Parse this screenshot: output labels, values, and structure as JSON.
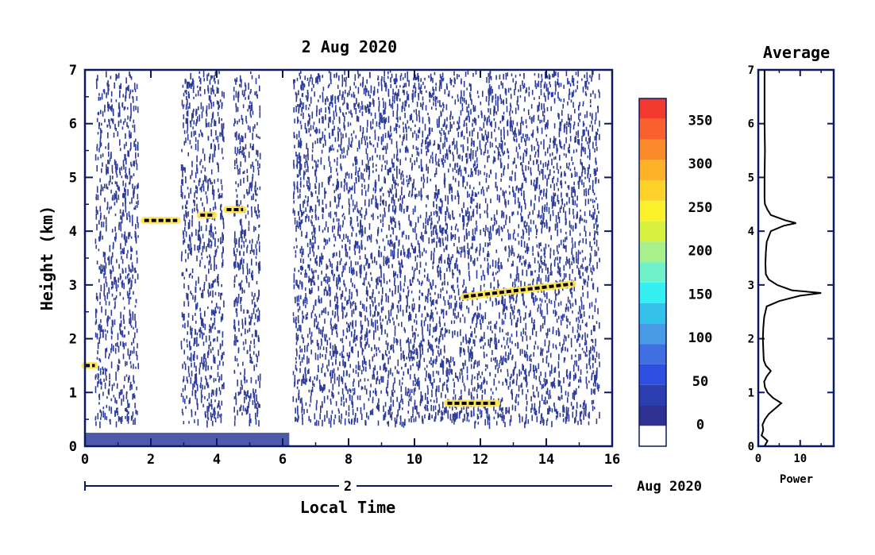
{
  "colors": {
    "frame": "#0b1a5e",
    "noise": "#2f3d9a",
    "line": "#000000",
    "colorbar": [
      "#ffffff",
      "#2e3192",
      "#2c3fb0",
      "#2e4fe0",
      "#3f6fe0",
      "#4a9be6",
      "#34c2ea",
      "#35f0f0",
      "#6ff2c8",
      "#a8f08c",
      "#d8f040",
      "#fcf22c",
      "#fdd22a",
      "#fdb227",
      "#fb8a2a",
      "#f8602e",
      "#f23a30"
    ]
  },
  "chart_data": [
    {
      "type": "heatmap",
      "title": "2 Aug 2020",
      "xlabel": "Local Time",
      "ylabel": "Height (km)",
      "xlim": [
        0,
        16
      ],
      "ylim": [
        0,
        7
      ],
      "x_ticks": [
        "0",
        "2",
        "4",
        "6",
        "8",
        "10",
        "12",
        "14",
        "16"
      ],
      "y_ticks": [
        "0",
        "1",
        "2",
        "3",
        "4",
        "5",
        "6",
        "7"
      ],
      "date_axis": {
        "day_label": "2",
        "month_label": "Aug 2020"
      },
      "noise_coverage_hours": [
        [
          0.3,
          1.6
        ],
        [
          2.9,
          4.2
        ],
        [
          4.5,
          5.3
        ],
        [
          6.3,
          15.6
        ]
      ],
      "surface_layer": {
        "height_km": [
          0,
          0.25
        ],
        "hours": [
          0,
          6.2
        ]
      },
      "layers": [
        {
          "hours": [
            1.8,
            2.8
          ],
          "height_km": 4.2
        },
        {
          "hours": [
            3.5,
            3.9
          ],
          "height_km": 4.3
        },
        {
          "hours": [
            4.3,
            4.8
          ],
          "height_km": 4.4
        },
        {
          "hours": [
            11.5,
            14.8
          ],
          "height_km_start": 2.78,
          "height_km_end": 3.02
        },
        {
          "hours": [
            11.0,
            12.5
          ],
          "height_km": 0.8
        },
        {
          "hours": [
            0.0,
            0.3
          ],
          "height_km": 1.5
        }
      ],
      "colorbar": {
        "ticks": [
          "0",
          "50",
          "100",
          "150",
          "200",
          "250",
          "300",
          "350"
        ],
        "tick_values": [
          0,
          50,
          100,
          150,
          200,
          250,
          300,
          350
        ],
        "range": [
          -25,
          375
        ]
      }
    },
    {
      "type": "line",
      "title": "Average",
      "xlabel": "Power",
      "ylabel": "",
      "xlim": [
        0,
        18
      ],
      "ylim": [
        0,
        7
      ],
      "x_ticks": [
        "0",
        "10"
      ],
      "y_ticks": [
        "0",
        "1",
        "2",
        "3",
        "4",
        "5",
        "6",
        "7"
      ],
      "series": [
        {
          "height_km": [
            0.0,
            0.1,
            0.2,
            0.3,
            0.4,
            0.5,
            0.6,
            0.7,
            0.8,
            0.9,
            1.0,
            1.1,
            1.2,
            1.3,
            1.4,
            1.5,
            1.6,
            1.8,
            2.0,
            2.2,
            2.4,
            2.6,
            2.7,
            2.8,
            2.85,
            2.9,
            3.0,
            3.1,
            3.2,
            3.4,
            3.6,
            3.8,
            4.0,
            4.1,
            4.15,
            4.2,
            4.3,
            4.4,
            4.5,
            4.6,
            5.0,
            5.5,
            6.0,
            6.5,
            7.0
          ],
          "power": [
            1.5,
            2.2,
            0.8,
            1.2,
            1.0,
            1.6,
            2.5,
            4.0,
            5.5,
            3.5,
            2.2,
            1.6,
            1.4,
            2.0,
            3.0,
            1.8,
            1.3,
            1.2,
            1.1,
            1.2,
            1.4,
            2.0,
            5.0,
            10.0,
            15.0,
            8.0,
            4.5,
            2.5,
            1.8,
            1.7,
            1.8,
            2.0,
            3.0,
            6.0,
            9.0,
            6.5,
            3.0,
            2.2,
            1.6,
            1.5,
            1.5,
            1.6,
            1.5,
            1.5,
            1.5
          ]
        }
      ]
    }
  ]
}
